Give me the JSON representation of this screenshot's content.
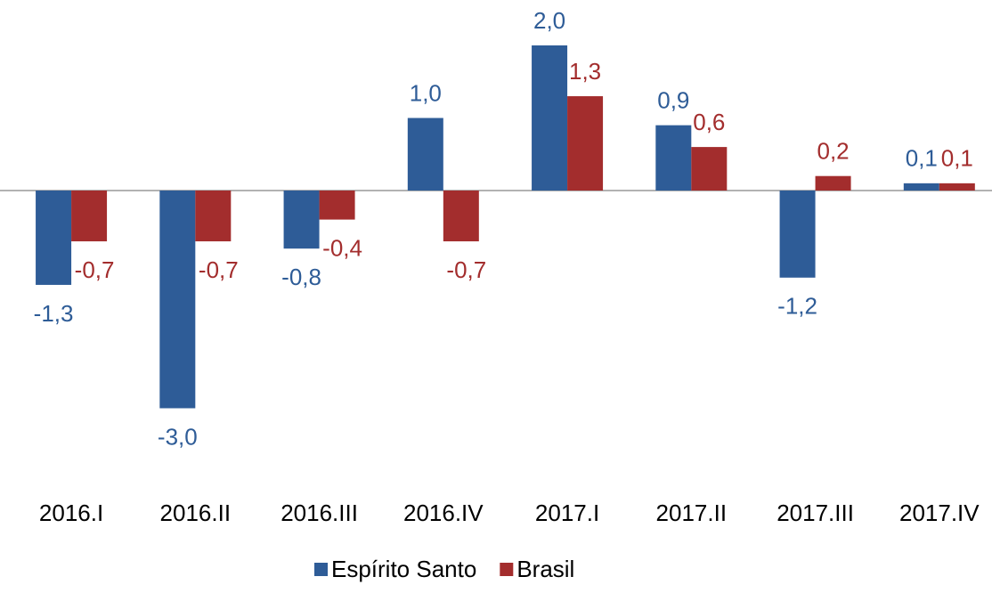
{
  "chart_data": {
    "type": "bar",
    "categories": [
      "2016.I",
      "2016.II",
      "2016.III",
      "2016.IV",
      "2017.I",
      "2017.II",
      "2017.III",
      "2017.IV"
    ],
    "series": [
      {
        "name": "Espírito Santo",
        "color": "#2e5c97",
        "values": [
          -1.3,
          -3.0,
          -0.8,
          1.0,
          2.0,
          0.9,
          -1.2,
          0.1
        ],
        "value_labels": [
          "-1,3",
          "-3,0",
          "-0,8",
          "1,0",
          "2,0",
          "0,9",
          "-1,2",
          "0,1"
        ]
      },
      {
        "name": "Brasil",
        "color": "#a32d2d",
        "values": [
          -0.7,
          -0.7,
          -0.4,
          -0.7,
          1.3,
          0.6,
          0.2,
          0.1
        ],
        "value_labels": [
          "-0,7",
          "-0,7",
          "-0,4",
          "-0,7",
          "1,3",
          "0,6",
          "0,2",
          "0,1"
        ]
      }
    ],
    "legend": "bottom"
  }
}
